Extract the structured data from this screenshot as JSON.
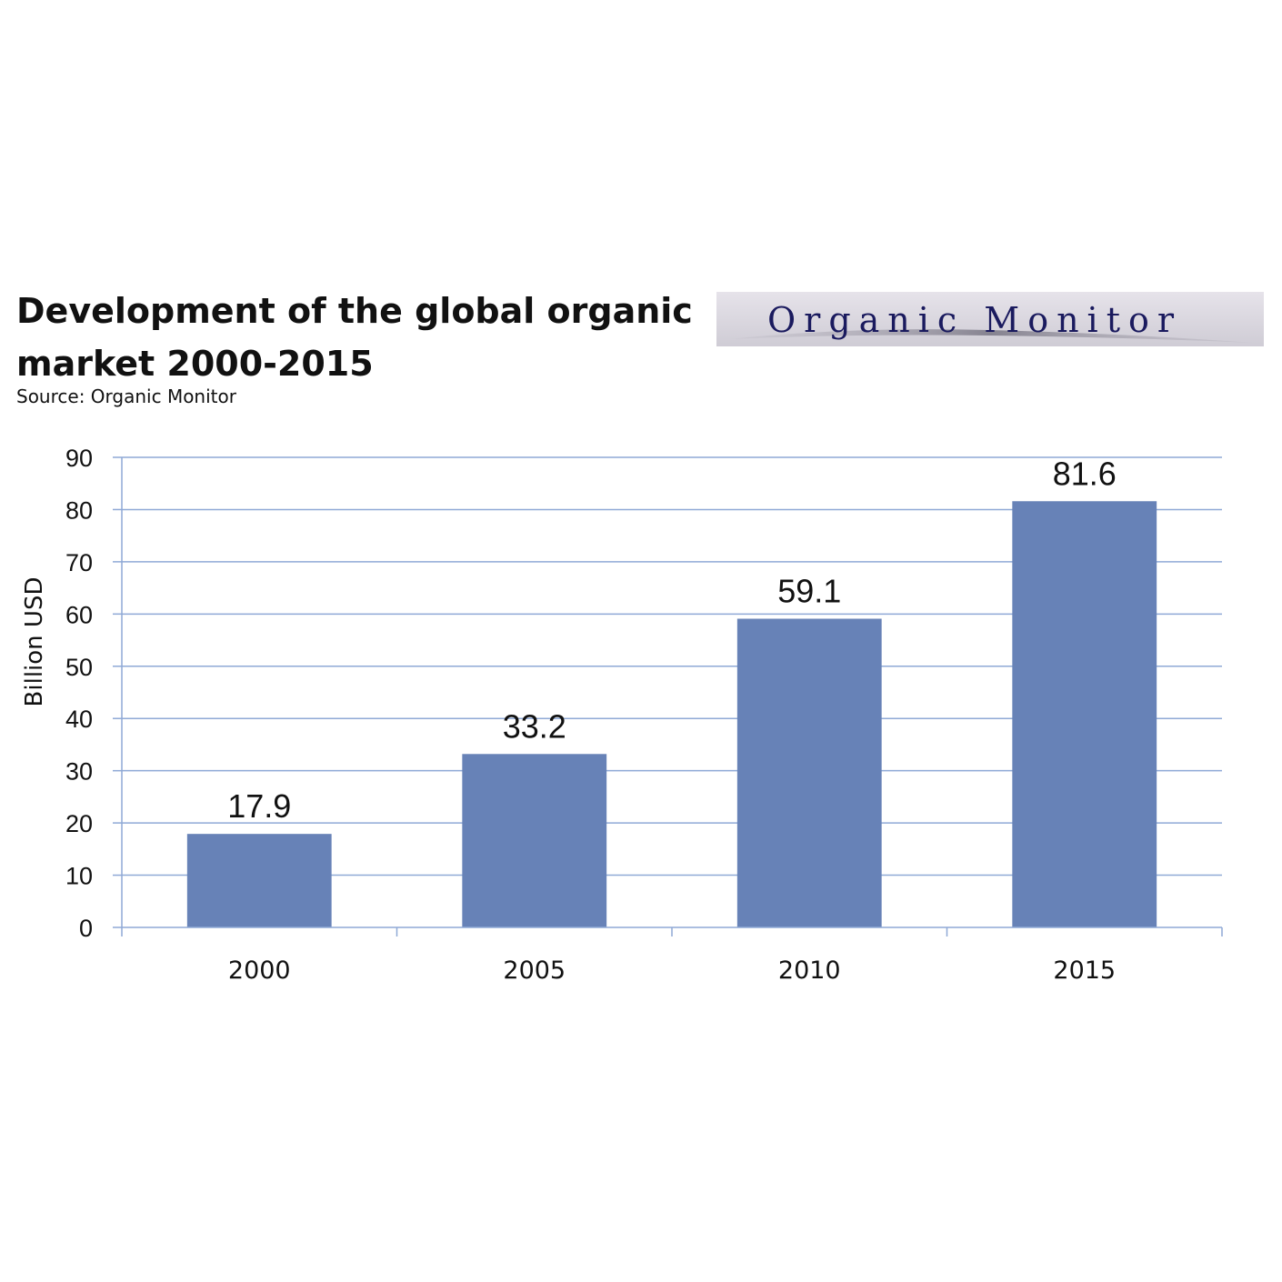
{
  "title": "Development of the global organic market 2000-2015",
  "source": "Source: Organic Monitor",
  "logo": {
    "text": "Organic Monitor",
    "text_color": "#1a1a5e",
    "background": "#d9d6de"
  },
  "colors": {
    "bar": "#6782b7",
    "grid": "#8fa9d6",
    "axis": "#8fa9d6"
  },
  "chart_data": {
    "type": "bar",
    "categories": [
      "2000",
      "2005",
      "2010",
      "2015"
    ],
    "values": [
      17.9,
      33.2,
      59.1,
      81.6
    ],
    "data_labels": [
      "17.9",
      "33.2",
      "59.1",
      "81.6"
    ],
    "ylabel": "Billion USD",
    "xlabel": "",
    "ylim": [
      0,
      90
    ],
    "yticks": [
      0,
      10,
      20,
      30,
      40,
      50,
      60,
      70,
      80,
      90
    ],
    "grid": true,
    "legend": "none"
  }
}
